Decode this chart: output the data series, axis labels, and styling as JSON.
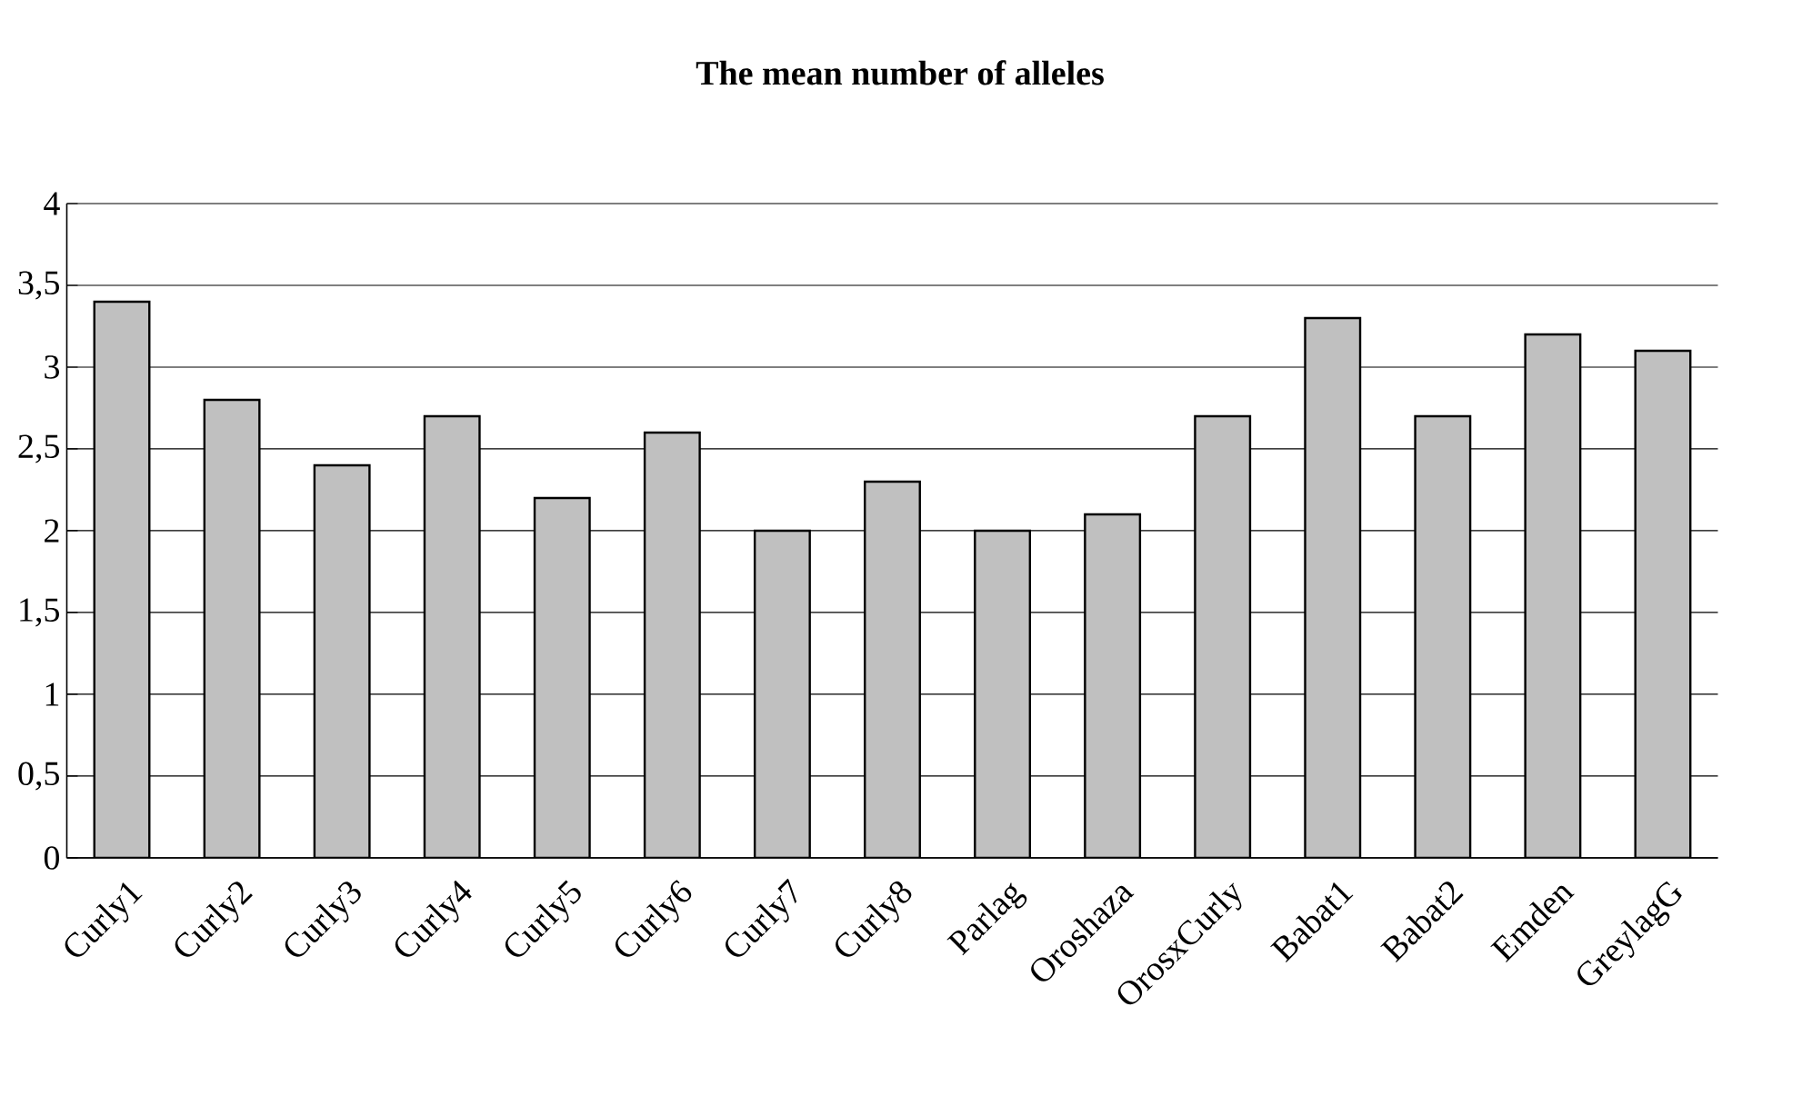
{
  "chart_data": {
    "type": "bar",
    "title": "The mean number of alleles",
    "categories": [
      "Curly1",
      "Curly2",
      "Curly3",
      "Curly4",
      "Curly5",
      "Curly6",
      "Curly7",
      "Curly8",
      "Parlag",
      "Oroshaza",
      "OrosxCurly",
      "Babat1",
      "Babat2",
      "Emden",
      "GreylagG"
    ],
    "values": [
      3.4,
      2.8,
      2.4,
      2.7,
      2.2,
      2.6,
      2.0,
      2.3,
      2.0,
      2.1,
      2.7,
      3.3,
      2.7,
      3.2,
      3.1
    ],
    "color": "#c0c0c0",
    "ylim": [
      0,
      4
    ],
    "yticks": [
      0,
      {
        "value": 0.5,
        "label": "0,5"
      },
      1,
      {
        "value": 1.5,
        "label": "1,5"
      },
      2,
      {
        "value": 2.5,
        "label": "2,5"
      },
      3,
      {
        "value": 3.5,
        "label": "3,5"
      },
      4
    ],
    "grid": "y"
  }
}
